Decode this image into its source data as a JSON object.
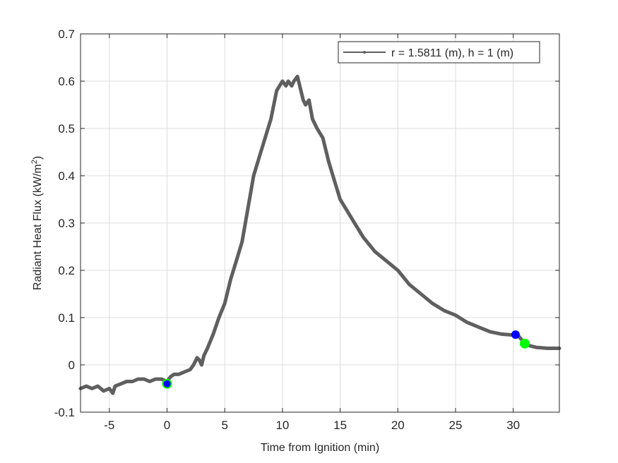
{
  "chart_data": {
    "type": "line",
    "title": "",
    "xlabel": "Time from Ignition (min)",
    "ylabel": "Radiant Heat Flux (kW/m",
    "ylabel_superscript": "2",
    "ylabel_suffix": ")",
    "xlim": [
      -7.5,
      34
    ],
    "ylim": [
      -0.1,
      0.7
    ],
    "xticks": [
      -5,
      0,
      5,
      10,
      15,
      20,
      25,
      30
    ],
    "xtick_labels": [
      "-5",
      "0",
      "5",
      "10",
      "15",
      "20",
      "25",
      "30"
    ],
    "yticks": [
      -0.1,
      0,
      0.1,
      0.2,
      0.3,
      0.4,
      0.5,
      0.6,
      0.7
    ],
    "ytick_labels": [
      "-0.1",
      "0",
      "0.1",
      "0.2",
      "0.3",
      "0.4",
      "0.5",
      "0.6",
      "0.7"
    ],
    "grid": true,
    "legend_position": "northeast",
    "series": [
      {
        "name": "r = 1.5811 (m), h = 1 (m)",
        "color": "#5f5f5f",
        "marker": ".",
        "x": [
          -7.5,
          -7.0,
          -6.5,
          -6.0,
          -5.5,
          -5.0,
          -4.7,
          -4.5,
          -4.0,
          -3.5,
          -3.0,
          -2.5,
          -2.0,
          -1.5,
          -1.0,
          -0.5,
          0.0,
          0.3,
          0.6,
          1.0,
          1.5,
          2.0,
          2.3,
          2.6,
          2.8,
          3.0,
          3.2,
          3.5,
          4.0,
          4.5,
          5.0,
          5.5,
          6.0,
          6.5,
          7.0,
          7.5,
          8.0,
          8.5,
          9.0,
          9.5,
          10.0,
          10.3,
          10.5,
          10.8,
          11.0,
          11.3,
          11.5,
          11.8,
          12.0,
          12.3,
          12.6,
          13.0,
          13.5,
          14.0,
          14.5,
          15.0,
          15.5,
          16.0,
          17.0,
          18.0,
          19.0,
          20.0,
          21.0,
          22.0,
          23.0,
          24.0,
          25.0,
          26.0,
          27.0,
          28.0,
          29.0,
          30.0,
          30.5,
          31.0,
          31.5,
          32.0,
          33.0,
          34.0
        ],
        "y": [
          -0.05,
          -0.045,
          -0.05,
          -0.045,
          -0.055,
          -0.05,
          -0.06,
          -0.045,
          -0.04,
          -0.035,
          -0.035,
          -0.03,
          -0.03,
          -0.035,
          -0.03,
          -0.03,
          -0.035,
          -0.025,
          -0.02,
          -0.02,
          -0.015,
          -0.01,
          0.0,
          0.015,
          0.01,
          0.0,
          0.02,
          0.035,
          0.065,
          0.1,
          0.13,
          0.18,
          0.22,
          0.26,
          0.33,
          0.4,
          0.44,
          0.48,
          0.52,
          0.58,
          0.6,
          0.59,
          0.6,
          0.59,
          0.6,
          0.61,
          0.59,
          0.56,
          0.55,
          0.56,
          0.52,
          0.5,
          0.48,
          0.43,
          0.39,
          0.35,
          0.33,
          0.31,
          0.27,
          0.24,
          0.22,
          0.2,
          0.17,
          0.15,
          0.13,
          0.115,
          0.105,
          0.09,
          0.08,
          0.07,
          0.065,
          0.063,
          0.06,
          0.045,
          0.04,
          0.037,
          0.035,
          0.035
        ]
      }
    ],
    "markers": [
      {
        "name": "start-green",
        "x": 0.0,
        "y": -0.04,
        "color": "#00ff00",
        "size": 7
      },
      {
        "name": "start-blue",
        "x": 0.0,
        "y": -0.04,
        "color": "#0000ff",
        "size": 5
      },
      {
        "name": "end-blue",
        "x": 30.2,
        "y": 0.064,
        "color": "#0000ff",
        "size": 6
      },
      {
        "name": "end-green",
        "x": 31.0,
        "y": 0.045,
        "color": "#00ff00",
        "size": 7
      }
    ]
  },
  "legend": {
    "entry_label": "r = 1.5811 (m), h = 1 (m)"
  },
  "axes": {
    "xlabel": "Time from Ignition (min)",
    "ylabel_main": "Radiant Heat Flux (kW/m",
    "ylabel_sup": "2",
    "ylabel_end": ")"
  },
  "colors": {
    "line": "#5f5f5f",
    "grid": "#dcdcdc",
    "axis": "#262626",
    "green_marker": "#00ff00",
    "blue_marker": "#0000ff"
  }
}
